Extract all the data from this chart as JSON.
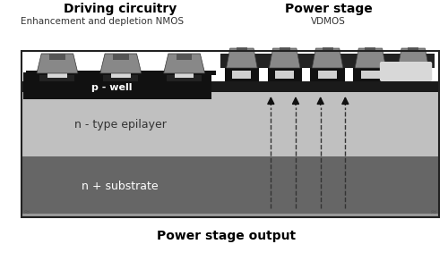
{
  "title_left": "Driving circuitry",
  "title_right": "Power stage",
  "subtitle_left": "Enhancement and depletion NMOS",
  "subtitle_right": "VDMOS",
  "label_pwell": "p - well",
  "label_epilayer": "n - type epilayer",
  "label_substrate": "n + substrate",
  "label_output": "Power stage output",
  "bg_color": "#ffffff",
  "color_substrate": "#666666",
  "color_epilayer": "#c0c0c0",
  "color_pwell": "#1a1a1a",
  "color_dark": "#2a2a2a",
  "color_med_gray": "#888888",
  "color_light_gray": "#aaaaaa",
  "color_white": "#e8e8e8",
  "arrow_color": "#111111",
  "fig_width": 5.0,
  "fig_height": 2.92,
  "dpi": 100
}
